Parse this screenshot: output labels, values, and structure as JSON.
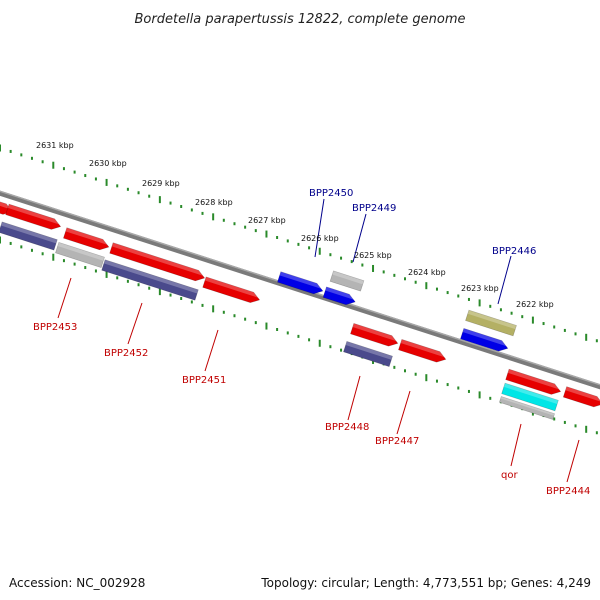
{
  "title": "Bordetella parapertussis 12822, complete genome",
  "footer": {
    "accession": "Accession: NC_002928",
    "topology": "Topology: circular; Length: 4,773,551 bp; Genes: 4,249"
  },
  "colors": {
    "tick": "#2a8a2a",
    "backbone": "#7a7a7a",
    "red_gene": "#e60000",
    "navy_gene": "#4a4a8c",
    "blue_gene": "#0000e6",
    "grey_gene": "#b4b4b4",
    "olive_gene": "#b4b064",
    "cyan_gene": "#00e6e6",
    "label_top": "#00008b",
    "label_bottom": "#c00000"
  },
  "ticks": [
    "2631 kbp",
    "2630 kbp",
    "2629 kbp",
    "2628 kbp",
    "2627 kbp",
    "2626 kbp",
    "2625 kbp",
    "2624 kbp",
    "2623 kbp",
    "2622 kbp"
  ],
  "genes_top": [
    "BPP2450",
    "BPP2449",
    "BPP2446"
  ],
  "genes_bottom": [
    "BPP2453",
    "BPP2452",
    "BPP2451",
    "BPP2448",
    "BPP2447",
    "qor",
    "BPP2444"
  ]
}
